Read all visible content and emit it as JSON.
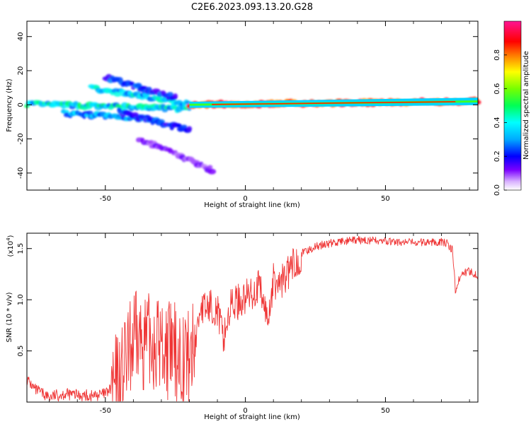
{
  "title": "C2E6.2023.093.13.20.G28",
  "chart_data": [
    {
      "type": "heatmap",
      "xlabel": "Height of straight line (km)",
      "ylabel": "Frequency (Hz)",
      "xlim": [
        -78,
        83
      ],
      "ylim": [
        -50,
        49
      ],
      "x_ticks": [
        -50,
        0,
        50
      ],
      "y_ticks": [
        -40,
        -20,
        0,
        20,
        40
      ],
      "grid": false,
      "colorbar": {
        "label": "Normalized spectral amplitude",
        "range": [
          0,
          1
        ],
        "ticks": [
          0.0,
          0.2,
          0.4,
          0.6,
          0.8
        ]
      },
      "tracks": [
        {
          "x0": -78,
          "x1": -20,
          "f0": 0.5,
          "f1": -2.5,
          "amp": 0.45
        },
        {
          "x0": -65,
          "x1": -35,
          "f0": -5,
          "f1": -8,
          "amp": 0.35
        },
        {
          "x0": -55,
          "x1": -18,
          "f0": 10,
          "f1": 0,
          "amp": 0.4
        },
        {
          "x0": -50,
          "x1": -25,
          "f0": 16,
          "f1": 4,
          "amp": 0.25
        },
        {
          "x0": -45,
          "x1": -20,
          "f0": -4,
          "f1": -15,
          "amp": 0.25
        },
        {
          "x0": -38,
          "x1": -12,
          "f0": -20,
          "f1": -38,
          "amp": 0.12
        },
        {
          "x0": -20,
          "x1": 83,
          "f0": 0,
          "f1": 2,
          "amp": 0.95
        }
      ]
    },
    {
      "type": "line",
      "xlabel": "Height of straight line (km)",
      "ylabel": "SNR (10 * v/v)",
      "y_multiplier": "(x10",
      "y_multiplier_exp": "4",
      "y_multiplier_close": ")",
      "xlim": [
        -78,
        83
      ],
      "ylim": [
        0,
        1.65
      ],
      "x_ticks": [
        -50,
        0,
        50
      ],
      "y_ticks": [
        0.5,
        1.0,
        1.5
      ],
      "grid": false,
      "series": [
        {
          "color": "#ef3535",
          "x": [
            -78,
            -75,
            -70,
            -65,
            -60,
            -55,
            -50,
            -47,
            -45,
            -42,
            -40,
            -37,
            -35,
            -32,
            -30,
            -28,
            -25,
            -22,
            -20,
            -18,
            -16,
            -15,
            -12,
            -10,
            -8,
            -5,
            0,
            5,
            8,
            10,
            12,
            15,
            20,
            25,
            30,
            35,
            40,
            45,
            50,
            55,
            60,
            65,
            70,
            72,
            74,
            75,
            77,
            80,
            83
          ],
          "y": [
            0.22,
            0.12,
            0.05,
            0.08,
            0.07,
            0.06,
            0.08,
            0.15,
            0.22,
            0.42,
            0.58,
            0.62,
            0.58,
            0.6,
            0.55,
            0.52,
            0.48,
            0.45,
            0.42,
            0.55,
            0.95,
            0.9,
            0.95,
            0.9,
            0.62,
            0.95,
            1.02,
            1.12,
            0.8,
            1.18,
            1.15,
            1.25,
            1.45,
            1.52,
            1.55,
            1.57,
            1.58,
            1.58,
            1.57,
            1.56,
            1.56,
            1.56,
            1.57,
            1.55,
            1.48,
            1.08,
            1.26,
            1.28,
            1.24
          ]
        }
      ]
    }
  ]
}
